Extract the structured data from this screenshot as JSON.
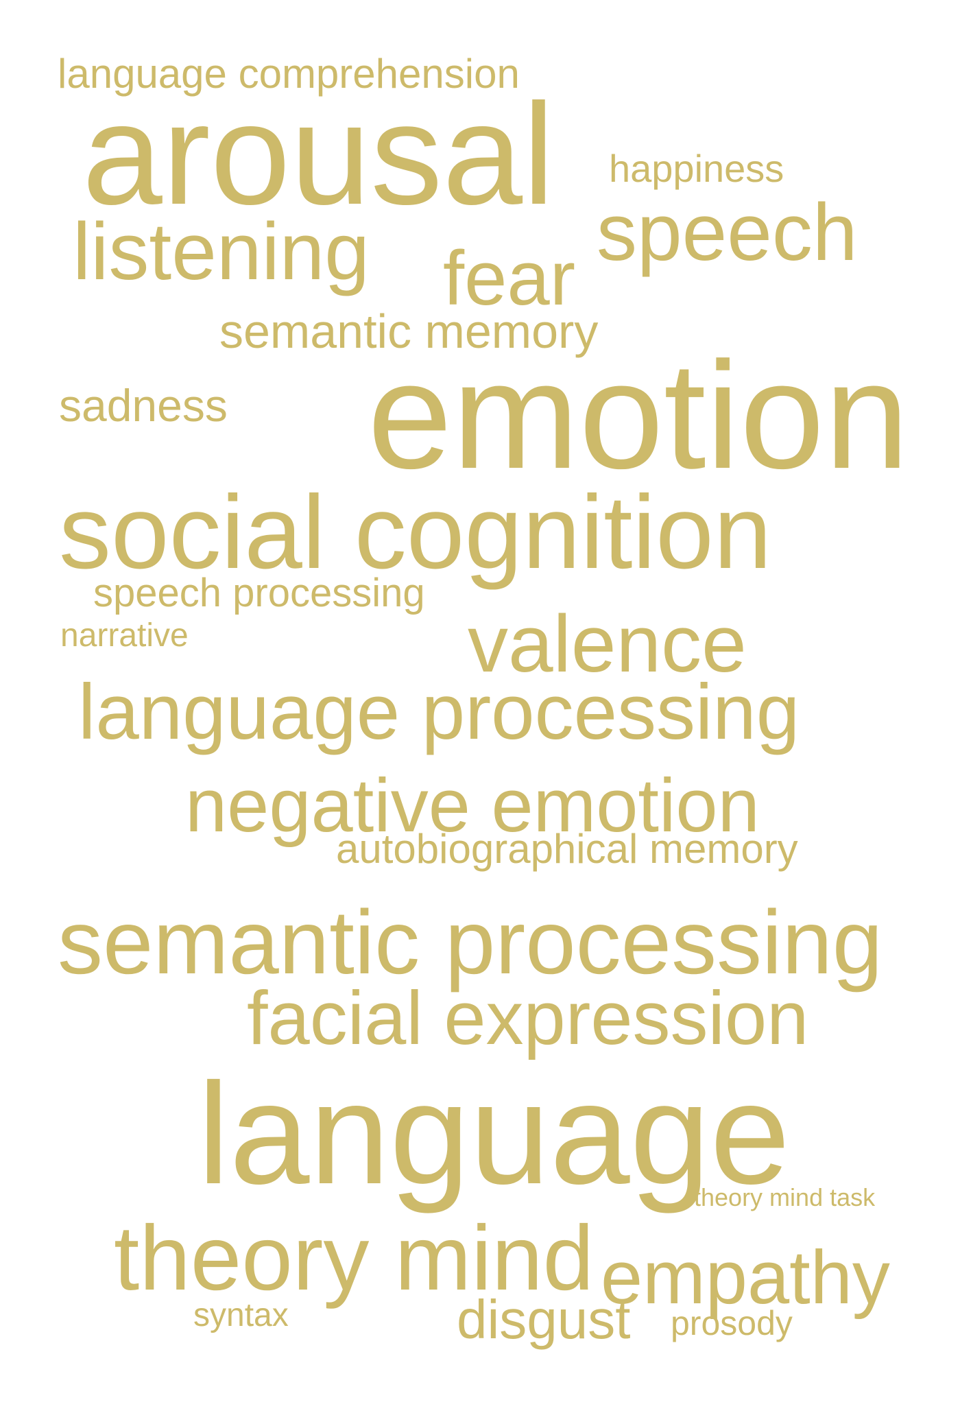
{
  "word_cloud": {
    "color": "#CDBA6A",
    "words": {
      "language_comprehension": "language comprehension",
      "arousal": "arousal",
      "happiness": "happiness",
      "speech": "speech",
      "listening": "listening",
      "fear": "fear",
      "semantic_memory": "semantic memory",
      "sadness": "sadness",
      "emotion": "emotion",
      "social_cognition": "social cognition",
      "speech_processing": "speech processing",
      "narrative": "narrative",
      "valence": "valence",
      "language_processing": "language processing",
      "negative_emotion": "negative emotion",
      "autobiographical_memory": "autobiographical memory",
      "semantic_processing": "semantic processing",
      "facial_expression": "facial expression",
      "language": "language",
      "theory_mind_task": "theory mind task",
      "theory_mind": "theory mind",
      "empathy": "empathy",
      "syntax": "syntax",
      "disgust": "disgust",
      "prosody": "prosody"
    }
  }
}
